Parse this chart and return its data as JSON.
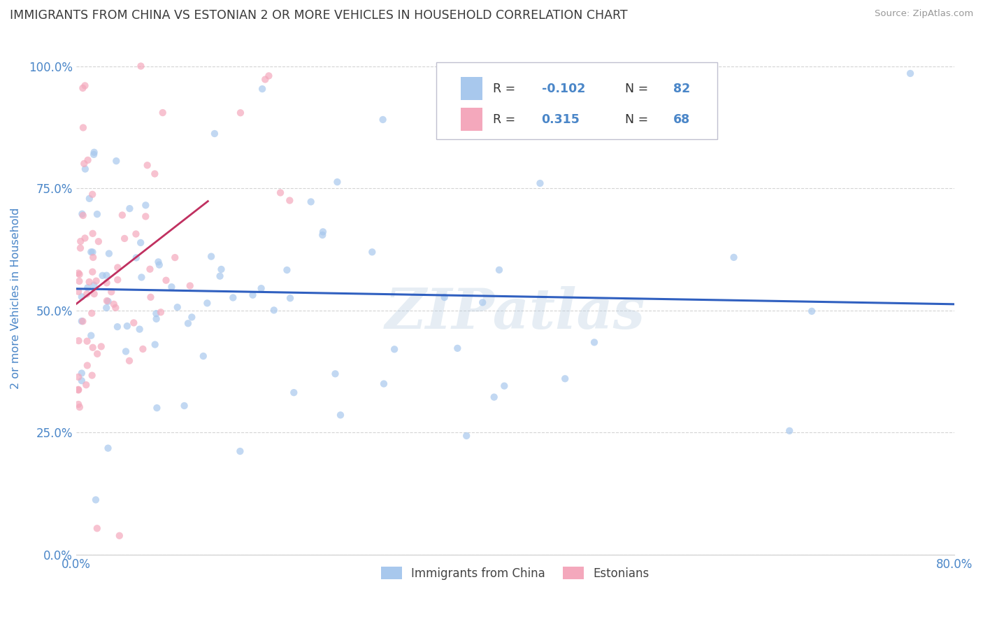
{
  "title": "IMMIGRANTS FROM CHINA VS ESTONIAN 2 OR MORE VEHICLES IN HOUSEHOLD CORRELATION CHART",
  "source": "Source: ZipAtlas.com",
  "ylabel": "2 or more Vehicles in Household",
  "legend_labels": [
    "Immigrants from China",
    "Estonians"
  ],
  "r_china": -0.102,
  "n_china": 82,
  "r_estonian": 0.315,
  "n_estonian": 68,
  "watermark": "ZIPatlas",
  "title_color": "#3a3a3a",
  "title_fontsize": 12.5,
  "source_color": "#999999",
  "china_color": "#a8c8ed",
  "estonian_color": "#f4a8bc",
  "china_line_color": "#3060c0",
  "estonian_line_color": "#c03060",
  "estonian_line_dashed_color": "#f4a8bc",
  "scatter_alpha": 0.7,
  "scatter_size": 55,
  "background_color": "#ffffff",
  "grid_color": "#d0d0d0",
  "axis_color": "#4a86c8",
  "xlim": [
    0.0,
    0.8
  ],
  "ylim": [
    0.0,
    1.05
  ],
  "legend_box_color": "#e8e8f0",
  "legend_text_color": "#333333"
}
